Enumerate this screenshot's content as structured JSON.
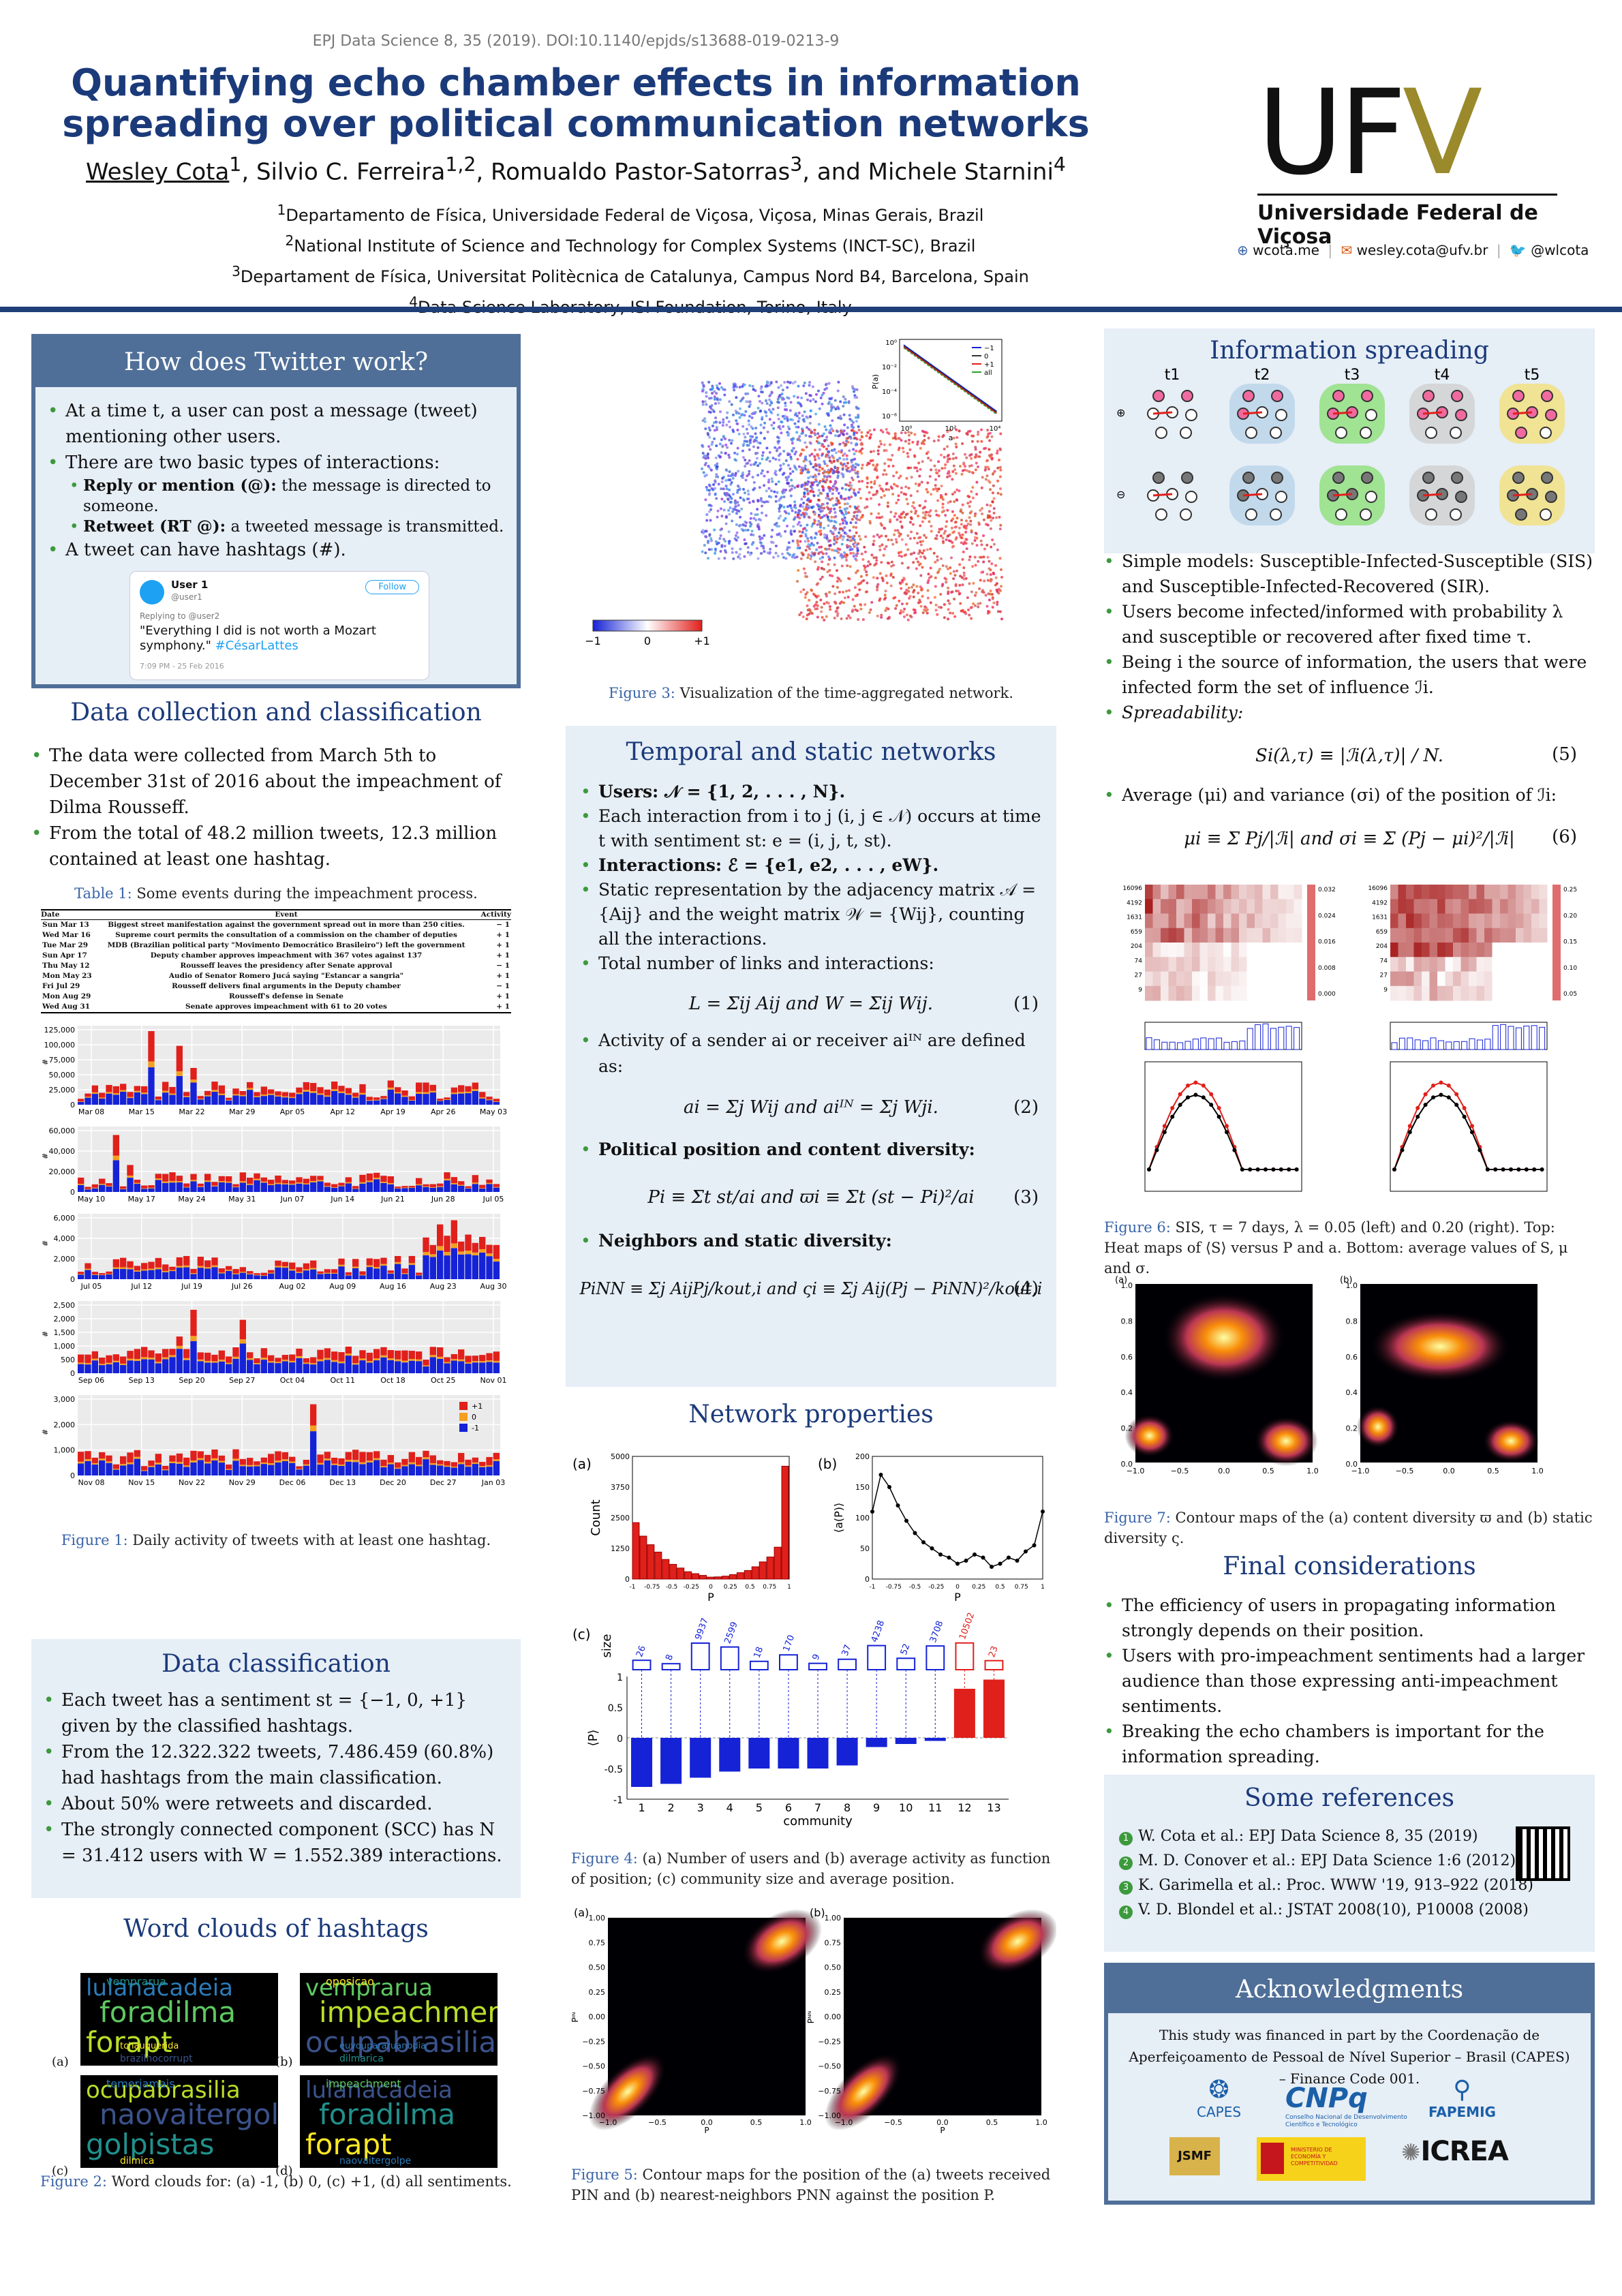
{
  "header": {
    "citation": "EPJ Data Science 8, 35 (2019). DOI:10.1140/epjds/s13688-019-0213-9",
    "title_line1": "Quantifying echo chamber effects in information",
    "title_line2": "spreading over political communication networks",
    "author1": "Wesley Cota",
    "author1_sup": "1",
    "author_rest": ", Silvio C. Ferreira",
    "author2_sup": "1,2",
    "author3": ", Romualdo Pastor-Satorras",
    "author3_sup": "3",
    "author4": ", and Michele Starnini",
    "author4_sup": "4",
    "affiliations": [
      {
        "sup": "1",
        "text": "Departamento de Física, Universidade Federal de Viçosa, Viçosa, Minas Gerais, Brazil"
      },
      {
        "sup": "2",
        "text": "National Institute of Science and Technology for Complex Systems (INCT-SC), Brazil"
      },
      {
        "sup": "3",
        "text": "Departament de Física, Universitat Politècnica de Catalunya, Campus Nord B4, Barcelona, Spain"
      },
      {
        "sup": "4",
        "text": "Data Science Laboratory, ISI Foundation, Torino, Italy"
      }
    ],
    "logo_u": "U",
    "logo_f": "F",
    "logo_v": "V",
    "logo_name": "Universidade Federal de Viçosa",
    "contact_web": "wcota.me",
    "contact_email": "wesley.cota@ufv.br",
    "contact_twitter": "@wlcota"
  },
  "twitter_box": {
    "title": "How does Twitter work?",
    "b1": "At a time t, a user can post a message (tweet) mentioning other users.",
    "b2": "There are two basic types of interactions:",
    "s1_bold": "Reply or mention (@):",
    "s1_text": " the message is directed to someone.",
    "s2_bold": "Retweet (RT @):",
    "s2_text": " a tweeted message is transmitted.",
    "b3": "A tweet can have hashtags (#).",
    "tweet_user": "User 1",
    "tweet_handle": "@user1",
    "tweet_follow": "Follow",
    "tweet_reply": "Replying to @user2",
    "tweet_text": "\"Everything I did is not worth a Mozart symphony.\"",
    "tweet_tag": "#CésarLattes",
    "tweet_time": "7:09 PM - 25 Feb 2016"
  },
  "data_collection": {
    "title": "Data collection and classification",
    "b1": "The data were collected from March 5th to December 31st of 2016 about the impeachment of Dilma Rousseff.",
    "b2": "From the total of 48.2 million tweets, 12.3 million contained at least one hashtag.",
    "table_caption_lbl": "Table 1:",
    "table_caption": " Some events during the impeachment process.",
    "table_headers": [
      "Date",
      "Event",
      "Activity"
    ],
    "table_rows": [
      [
        "Sun Mar 13",
        "Biggest street manifestation against the government spread out in more than 250 cities.",
        "− 1"
      ],
      [
        "Wed Mar 16",
        "Supreme court permits the consultation of a commission on the chamber of deputies",
        "+ 1"
      ],
      [
        "Tue Mar 29",
        "MDB (Brazilian political party \"Movimento Democrático Brasileiro\") left the government",
        "+ 1"
      ],
      [
        "Sun Apr 17",
        "Deputy chamber approves impeachment with 367 votes against 137",
        "+ 1"
      ],
      [
        "Thu May 12",
        "Rousseff leaves the presidency after Senate approval",
        "− 1"
      ],
      [
        "Mon May 23",
        "Audio of Senator Romero Jucá saying \"Estancar a sangria\"",
        "+ 1"
      ],
      [
        "Fri Jul 29",
        "Rousseff delivers final arguments in the Deputy chamber",
        "− 1"
      ],
      [
        "Mon Aug 29",
        "Rousseff's defense in Senate",
        "+ 1"
      ],
      [
        "Wed Aug 31",
        "Senate approves impeachment with 61 to 20 votes",
        "+ 1"
      ]
    ],
    "fig1_caption_lbl": "Figure 1:",
    "fig1_caption": " Daily activity of tweets with at least one hashtag."
  },
  "activity_panels": [
    {
      "yticks": [
        "125,000",
        "100,000",
        "75,000",
        "50,000",
        "25,000",
        "0"
      ],
      "xticks": [
        "Mar 08",
        "Mar 15",
        "Mar 22",
        "Mar 29",
        "Apr 05",
        "Apr 12",
        "Apr 19",
        "Apr 26",
        "May 03"
      ]
    },
    {
      "yticks": [
        "60,000",
        "40,000",
        "20,000",
        "0"
      ],
      "xticks": [
        "May 10",
        "May 17",
        "May 24",
        "May 31",
        "Jun 07",
        "Jun 14",
        "Jun 21",
        "Jun 28",
        "Jul 05"
      ]
    },
    {
      "yticks": [
        "6,000",
        "4,000",
        "2,000",
        "0"
      ],
      "xticks": [
        "Jul 05",
        "Jul 12",
        "Jul 19",
        "Jul 26",
        "Aug 02",
        "Aug 09",
        "Aug 16",
        "Aug 23",
        "Aug 30"
      ]
    },
    {
      "yticks": [
        "2,500",
        "2,000",
        "1,500",
        "1,000",
        "500",
        "0"
      ],
      "xticks": [
        "Sep 06",
        "Sep 13",
        "Sep 20",
        "Sep 27",
        "Oct 04",
        "Oct 11",
        "Oct 18",
        "Oct 25",
        "Nov 01"
      ]
    },
    {
      "yticks": [
        "3,000",
        "2,000",
        "1,000",
        "0"
      ],
      "xticks": [
        "Nov 08",
        "Nov 15",
        "Nov 22",
        "Nov 29",
        "Dec 06",
        "Dec 13",
        "Dec 20",
        "Dec 27",
        "Jan 03"
      ]
    }
  ],
  "activity_ylabel": "#",
  "activity_legend": [
    "+1",
    "0",
    "-1"
  ],
  "data_classification": {
    "title": "Data classification",
    "b1": "Each tweet has a sentiment st = {−1, 0, +1} given by the classified hashtags.",
    "b2": "From the 12.322.322 tweets, 7.486.459 (60.8%) had hashtags from the main classification.",
    "b3": "About 50% were retweets and discarded.",
    "b4": "The strongly connected component (SCC) has N = 31.412 users with W = 1.552.389 interactions."
  },
  "word_clouds": {
    "title": "Word clouds of hashtags",
    "labels": [
      "(a)",
      "(b)",
      "(c)",
      "(d)"
    ],
    "a_words": [
      "lulanacadeia",
      "foradilma",
      "forapt",
      "brazilnocorrupt",
      "vemprarua",
      "tchauquerida"
    ],
    "b_words": [
      "vemprarua",
      "impeachment",
      "ocupabrasilia",
      "dilmarica",
      "oposicao",
      "euvoupararuanodia"
    ],
    "c_words": [
      "ocupabrasilia",
      "naovaitergolpe",
      "golpistas",
      "dilmica",
      "temerjamais"
    ],
    "d_words": [
      "lulanacadeia",
      "foradilma",
      "forapt",
      "naovaitergolpe",
      "impeachment"
    ],
    "caption_lbl": "Figure 2:",
    "caption": " Word clouds for: (a) -1, (b) 0, (c) +1, (d) all sentiments."
  },
  "network_fig": {
    "colorbar_ticks": [
      "−1",
      "0",
      "+1"
    ],
    "inset_xlabel": "a",
    "inset_ylabel": "P(a)",
    "inset_legend": [
      "−1",
      "0",
      "+1",
      "all"
    ],
    "inset_yticks": [
      "10⁰",
      "10⁻²",
      "10⁻⁴",
      "10⁻⁶"
    ],
    "inset_xticks": [
      "10⁰",
      "10²",
      "10⁴"
    ],
    "caption_lbl": "Figure 3:",
    "caption": " Visualization of the time-aggregated network."
  },
  "temporal": {
    "title": "Temporal and static networks",
    "users": "Users: 𝒩 = {1, 2, . . . , N}.",
    "interaction": "Each interaction from i to j (i, j ∈ 𝒩) occurs at time t with sentiment st: e = (i, j, t, st).",
    "interactions": "Interactions: ℰ = {e1, e2, . . . , eW}.",
    "static": "Static representation by the adjacency matrix 𝒜 = {Aij} and the weight matrix 𝒲 = {Wij}, counting all the interactions.",
    "total": "Total number of links and interactions:",
    "eq1": "L = Σij Aij   and   W = Σij Wij.",
    "eq1_num": "(1)",
    "activity": "Activity of a sender ai or receiver aiᴵᴺ are defined as:",
    "eq2": "ai = Σj Wij   and   aiᴵᴺ = Σj Wji.",
    "eq2_num": "(2)",
    "political": "Political position and content diversity:",
    "eq3": "Pi ≡ Σt st/ai   and   ϖi ≡ Σt (st − Pi)²/ai",
    "eq3_num": "(3)",
    "neighbors": "Neighbors and static diversity:",
    "eq4": "PiNN ≡ Σj AijPj/kout,i   and   ςi ≡ Σj Aij(Pj − PiNN)²/kout,i",
    "eq4_num": "(4)"
  },
  "network_properties": {
    "title": "Network properties",
    "panel_a": "(a)",
    "panel_b": "(b)",
    "panel_c": "(c)",
    "a_ylabel": "Count",
    "a_xlabel": "P",
    "a_yticks": [
      "5000",
      "3750",
      "2500",
      "1250",
      "0"
    ],
    "b_ylabel": "⟨a(P)⟩",
    "b_xlabel": "P",
    "b_yticks": [
      "200",
      "150",
      "100",
      "50",
      "0"
    ],
    "pm_xticks": [
      "-1",
      "-0.75",
      "-0.5",
      "-0.25",
      "0",
      "0.25",
      "0.5",
      "0.75",
      "1"
    ],
    "c_size_label": "size",
    "c_ylabel": "⟨P⟩",
    "c_xlabel": "community",
    "c_yticks": [
      "1",
      "0.5",
      "0",
      "-0.5",
      "-1"
    ],
    "caption_lbl": "Figure 4:",
    "caption": " (a) Number of users and (b) average activity as function of position; (c) community size and average position.",
    "fig5_caption_lbl": "Figure 5:",
    "fig5_caption": " Contour maps for the position of the (a) tweets received PIN and (b) nearest-neighbors PNN against the position P.",
    "fig5_ylabel_a": "Pᴵᴺ",
    "fig5_ylabel_b": "Pᴺᴺ",
    "fig5_xlabel": "P",
    "fig5_ticks": [
      "1.00",
      "0.75",
      "0.50",
      "0.25",
      "0.00",
      "−0.25",
      "−0.50",
      "−0.75",
      "−1.00"
    ],
    "fig5_xticks": [
      "−1.0",
      "−0.5",
      "0.0",
      "0.5",
      "1.0"
    ]
  },
  "chart_data": [
    {
      "type": "bar",
      "title": "",
      "xlabel": "P",
      "ylabel": "Count",
      "ylim": [
        0,
        5000
      ],
      "categories": [
        "-1",
        "-0.9",
        "-0.8",
        "-0.7",
        "-0.6",
        "-0.5",
        "-0.4",
        "-0.3",
        "-0.2",
        "-0.1",
        "0",
        "0.1",
        "0.2",
        "0.3",
        "0.4",
        "0.5",
        "0.6",
        "0.7",
        "0.8",
        "0.9",
        "1"
      ],
      "values": [
        2300,
        1750,
        1400,
        1100,
        800,
        600,
        450,
        300,
        220,
        150,
        80,
        90,
        120,
        180,
        260,
        350,
        500,
        700,
        900,
        1300,
        4600
      ]
    },
    {
      "type": "line",
      "title": "",
      "xlabel": "P",
      "ylabel": "⟨a(P)⟩",
      "ylim": [
        0,
        200
      ],
      "x": [
        -1,
        -0.9,
        -0.8,
        -0.7,
        -0.6,
        -0.5,
        -0.4,
        -0.3,
        -0.2,
        -0.1,
        0,
        0.1,
        0.2,
        0.3,
        0.4,
        0.5,
        0.6,
        0.7,
        0.8,
        0.9,
        1
      ],
      "values": [
        110,
        170,
        150,
        120,
        95,
        75,
        60,
        50,
        40,
        35,
        25,
        30,
        40,
        35,
        20,
        25,
        35,
        30,
        45,
        55,
        110
      ]
    },
    {
      "type": "bar",
      "title": "",
      "xlabel": "community",
      "ylabel": "⟨P⟩",
      "ylim": [
        -1,
        1
      ],
      "categories": [
        "1",
        "2",
        "3",
        "4",
        "5",
        "6",
        "7",
        "8",
        "9",
        "10",
        "11",
        "12",
        "13"
      ],
      "values": [
        -0.8,
        -0.75,
        -0.65,
        -0.55,
        -0.5,
        -0.5,
        -0.5,
        -0.45,
        -0.15,
        -0.1,
        -0.05,
        0.8,
        0.95
      ],
      "sizes": [
        "26",
        "8",
        "9937",
        "2599",
        "18",
        "170",
        "9",
        "37",
        "4238",
        "52",
        "3708",
        "10502",
        "23"
      ]
    }
  ],
  "info_spreading": {
    "title": "Information spreading",
    "times": [
      "t1",
      "t2",
      "t3",
      "t4",
      "t5"
    ],
    "b1": "Simple models: Susceptible-Infected-Susceptible (SIS) and Susceptible-Infected-Recovered (SIR).",
    "b2": "Users become infected/informed with probability λ and susceptible or recovered after fixed time τ.",
    "b3": "Being i the source of information, the users that were infected form the set of influence ℐi.",
    "b4": "Spreadability:",
    "eq5": "Si(λ,τ) ≡ |ℐi(λ,τ)| / N.",
    "eq5_num": "(5)",
    "b5": "Average (μi) and variance (σi) of the position of ℐi:",
    "eq6": "μi ≡ Σ Pj/|ℐi|   and   σi ≡ Σ (Pj − μi)²/|ℐi|",
    "eq6_num": "(6)",
    "fig6_yticks": [
      "16096",
      "4192",
      "1631",
      "659",
      "204",
      "74",
      "27",
      "9"
    ],
    "fig6_cbar_left": [
      "0.032",
      "0.024",
      "0.016",
      "0.008",
      "0.000"
    ],
    "fig6_cbar_right": [
      "0.25",
      "0.20",
      "0.15",
      "0.10",
      "0.05"
    ],
    "fig6_caption_lbl": "Figure 6:",
    "fig6_caption": " SIS, τ = 7 days, λ = 0.05 (left) and 0.20 (right). Top: Heat maps of ⟨S⟩ versus P and a. Bottom: average values of S, μ and σ.",
    "fig7_caption_lbl": "Figure 7:",
    "fig7_caption": " Contour maps of the (a) content diversity ϖ and (b) static diversity ς.",
    "fig7_labels": [
      "(a)",
      "(b)"
    ],
    "fig7_yticks": [
      "1.0",
      "0.8",
      "0.6",
      "0.4",
      "0.2",
      "0.0"
    ],
    "fig7_xticks": [
      "−1.0",
      "−0.5",
      "0.0",
      "0.5",
      "1.0"
    ]
  },
  "final": {
    "title": "Final considerations",
    "b1": "The efficiency of users in propagating information strongly depends on their position.",
    "b2": "Users with pro-impeachment sentiments had a larger audience than those expressing anti-impeachment sentiments.",
    "b3": "Breaking the echo chambers is important for the information spreading."
  },
  "references": {
    "title": "Some references",
    "items": [
      {
        "num": "1",
        "text": "W. Cota et al.: EPJ Data Science 8, 35 (2019)"
      },
      {
        "num": "2",
        "text": "M. D. Conover et al.: EPJ Data Science 1:6 (2012)"
      },
      {
        "num": "3",
        "text": "K. Garimella et al.: Proc. WWW '19, 913–922 (2018)"
      },
      {
        "num": "4",
        "text": "V. D. Blondel et al.: JSTAT 2008(10), P10008 (2008)"
      }
    ]
  },
  "ack": {
    "title": "Acknowledgments",
    "text": "This study was financed in part by the Coordenação de Aperfeiçoamento de Pessoal de Nível Superior – Brasil (CAPES) – Finance Code 001.",
    "logos": [
      "CAPES",
      "CNPq",
      "FAPEMIG",
      "JSMF",
      "ICREA"
    ],
    "cnpq_sub": "Conselho Nacional de Desenvolvimento Científico e Tecnológico",
    "mineco_sub": "MINISTERIO DE ECONOMÍA Y COMPETITIVIDAD"
  },
  "colors": {
    "navy": "#1b3a7a",
    "box_bg": "#e6eef6",
    "box_border": "#4f6f98",
    "red": "#e0201b",
    "blue": "#1522d6",
    "bullet_green": "#3c9a3c"
  }
}
